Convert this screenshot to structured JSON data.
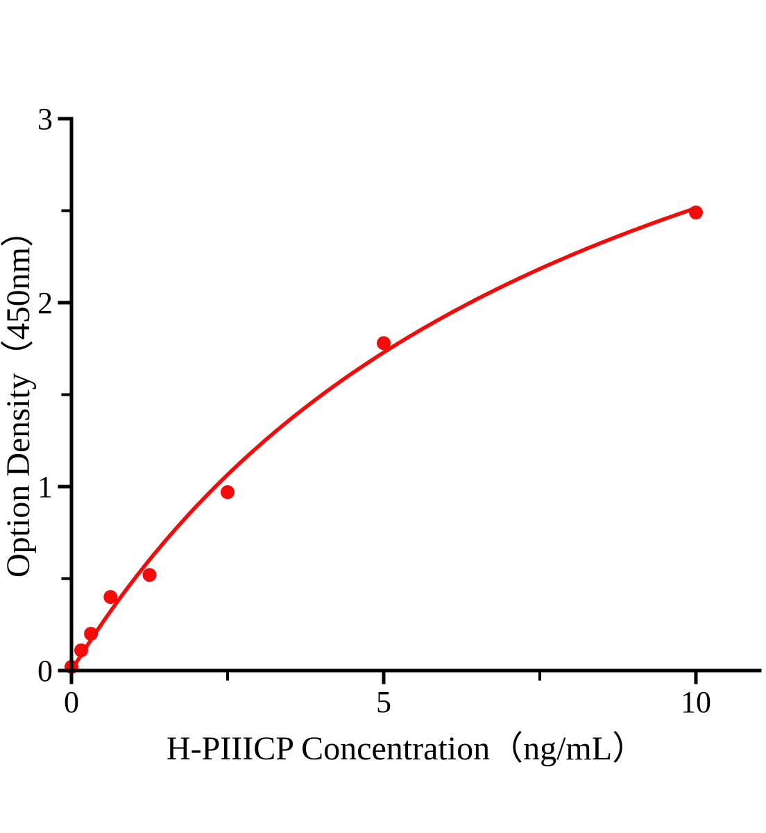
{
  "figure": {
    "background_color": "#ffffff",
    "text_color": "#000000"
  },
  "chart_data": {
    "type": "scatter",
    "title": "",
    "xlabel": "H-PIIICP Concentration（ng/mL）",
    "ylabel": "Option Density（450nm）",
    "points": [
      {
        "x": 0,
        "y": 0.02
      },
      {
        "x": 0.156,
        "y": 0.11
      },
      {
        "x": 0.3125,
        "y": 0.2
      },
      {
        "x": 0.625,
        "y": 0.4
      },
      {
        "x": 1.25,
        "y": 0.52
      },
      {
        "x": 2.5,
        "y": 0.97
      },
      {
        "x": 5,
        "y": 1.78
      },
      {
        "x": 10,
        "y": 2.49
      }
    ],
    "fit_curve": {
      "model": "y = a*x / (b + x)",
      "a": 4.6,
      "b": 8.3,
      "x_start": 0,
      "x_end": 10
    },
    "xlim": [
      0,
      11.05
    ],
    "ylim": [
      0,
      3
    ],
    "x_major_ticks": [
      {
        "value": 0,
        "label": "0"
      },
      {
        "value": 5,
        "label": "5"
      },
      {
        "value": 10,
        "label": "10"
      }
    ],
    "x_minor_ticks": [
      2.5,
      7.5
    ],
    "y_major_ticks": [
      {
        "value": 0,
        "label": "0"
      },
      {
        "value": 1,
        "label": "1"
      },
      {
        "value": 2,
        "label": "2"
      },
      {
        "value": 3,
        "label": "3"
      }
    ],
    "y_minor_ticks": [
      0.5,
      1.5,
      2.5
    ],
    "grid": false,
    "legend": "none",
    "marker_color": "#f50a0a",
    "line_color": "#f50a0a",
    "axis_color": "#000000"
  }
}
